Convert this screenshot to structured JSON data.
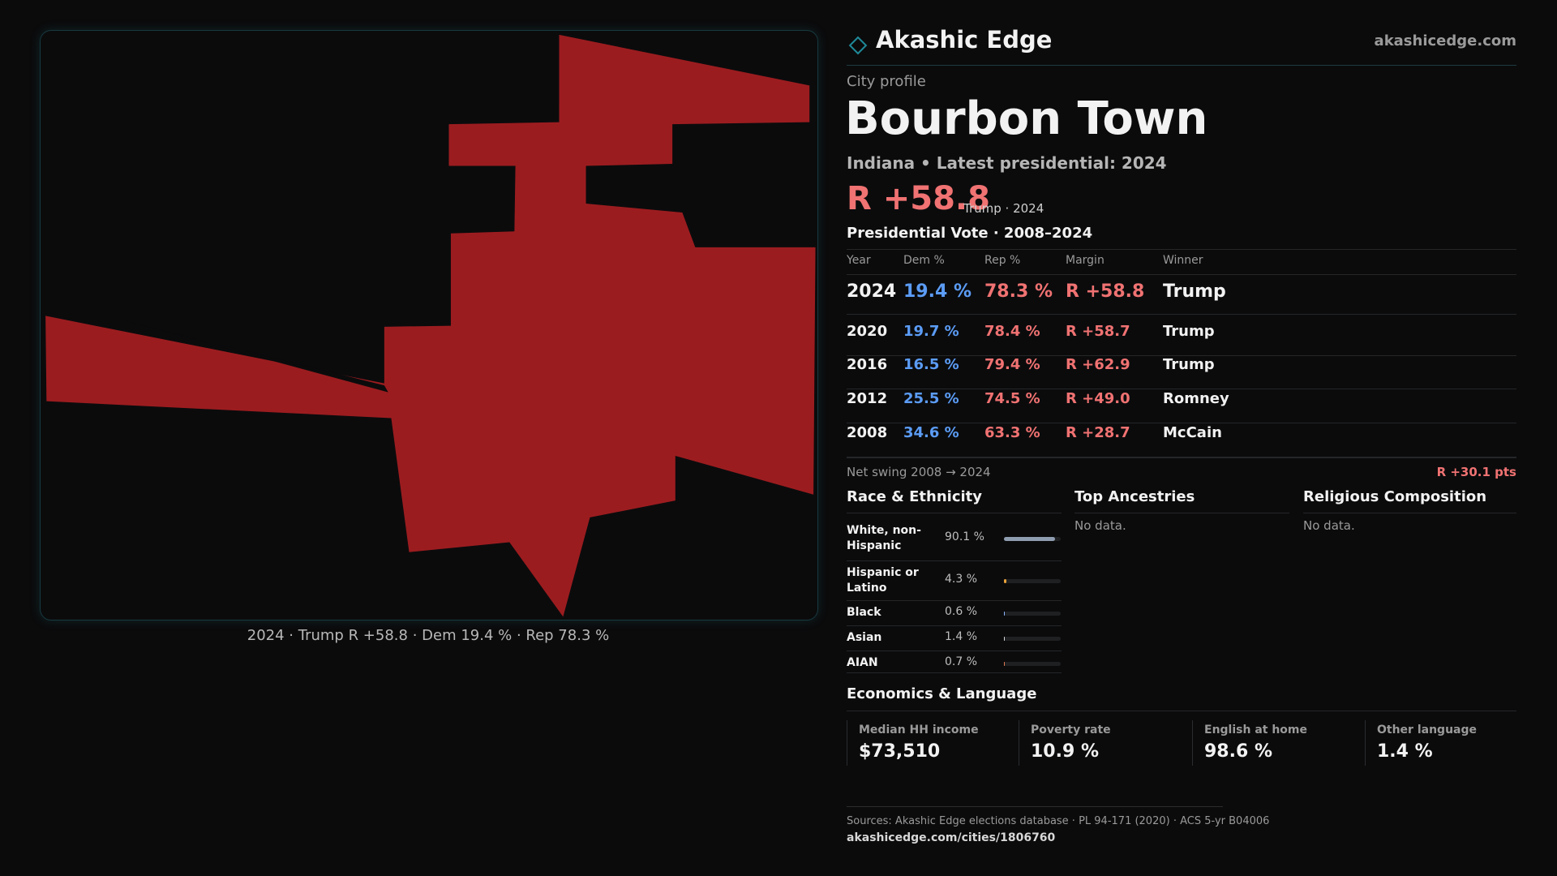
{
  "header": {
    "brand": "Akashic Edge",
    "site": "akashicedge.com"
  },
  "profile": {
    "kicker": "City profile",
    "title": "Bourbon Town",
    "subtitle": "Indiana • Latest presidential: 2024",
    "margin": "R +58.8",
    "margin_note": "Trump · 2024"
  },
  "map": {
    "caption": "2024 · Trump R +58.8 · Dem 19.4 % · Rep 78.3 %"
  },
  "vote_table": {
    "title": "Presidential Vote · 2008–2024",
    "columns": [
      "Year",
      "Dem %",
      "Rep %",
      "Margin",
      "Winner"
    ],
    "rows": [
      [
        "2024",
        "19.4 %",
        "78.3 %",
        "R +58.8",
        "Trump"
      ],
      [
        "2020",
        "19.7 %",
        "78.4 %",
        "R +58.7",
        "Trump"
      ],
      [
        "2016",
        "16.5 %",
        "79.4 %",
        "R +62.9",
        "Trump"
      ],
      [
        "2012",
        "25.5 %",
        "74.5 %",
        "R +49.0",
        "Romney"
      ],
      [
        "2008",
        "34.6 %",
        "63.3 %",
        "R +28.7",
        "McCain"
      ]
    ],
    "swing_label": "Net swing 2008 → 2024",
    "swing_value": "R +30.1 pts"
  },
  "race": {
    "title": "Race & Ethnicity",
    "labels": [
      "White, non-Hispanic",
      "Hispanic or Latino",
      "Black",
      "Asian",
      "AIAN"
    ],
    "values": [
      90.1,
      4.3,
      0.6,
      1.4,
      0.7
    ],
    "value_labels": [
      "90.1 %",
      "4.3 %",
      "0.6 %",
      "1.4 %",
      "0.7 %"
    ],
    "colors": [
      "#8f9db0",
      "#e8a23a",
      "#8ab4ff",
      "#d9d9d9",
      "#e07a50"
    ]
  },
  "ancestries": {
    "title": "Top Ancestries",
    "note": "No data."
  },
  "religion": {
    "title": "Religious Composition",
    "note": "No data."
  },
  "economics": {
    "title": "Economics & Language",
    "stats": [
      {
        "label": "Median HH income",
        "value": "$73,510"
      },
      {
        "label": "Poverty rate",
        "value": "10.9 %"
      },
      {
        "label": "English at home",
        "value": "98.6 %"
      },
      {
        "label": "Other language",
        "value": "1.4 %"
      }
    ]
  },
  "footer": {
    "sources": "Sources: Akashic Edge elections database · PL 94-171 (2020) · ACS 5-yr B04006",
    "url": "akashicedge.com/cities/1806760"
  }
}
